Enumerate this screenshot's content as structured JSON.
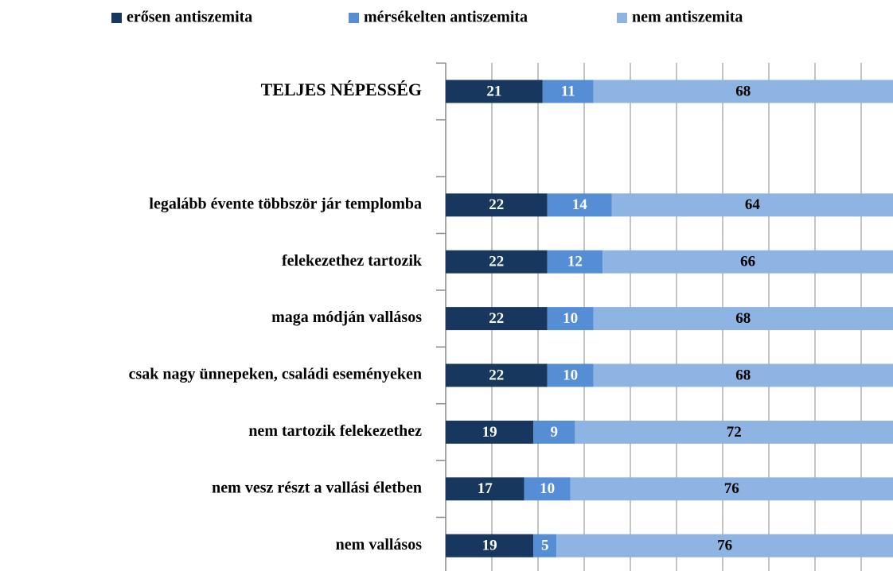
{
  "chart_data": {
    "type": "stacked_barh",
    "categories": [
      "TELJES NÉPESSÉG",
      null,
      "legalább évente többször jár templomba",
      "felekezethez tartozik",
      "maga módján vallásos",
      "csak nagy ünnepeken,  családi eseményeken",
      "nem tartozik felekezethez",
      "nem vesz  részt a vallási  életben",
      "nem vallásos"
    ],
    "series": [
      {
        "name": "erősen antiszemita",
        "color": "#17375e",
        "values": [
          21,
          null,
          22,
          22,
          22,
          22,
          19,
          17,
          19
        ]
      },
      {
        "name": "mérsékelten antiszemita",
        "color": "#558ed5",
        "values": [
          11,
          null,
          14,
          12,
          10,
          10,
          9,
          10,
          5
        ]
      },
      {
        "name": "nem antiszemita",
        "color": "#8eb4e3",
        "values": [
          68,
          null,
          64,
          66,
          68,
          68,
          72,
          76,
          76
        ]
      }
    ],
    "xlim": [
      0,
      100
    ],
    "xticks": [
      0,
      10,
      20,
      30,
      40,
      50,
      60,
      70,
      80,
      90,
      100
    ],
    "grid": true,
    "legend": "top"
  }
}
